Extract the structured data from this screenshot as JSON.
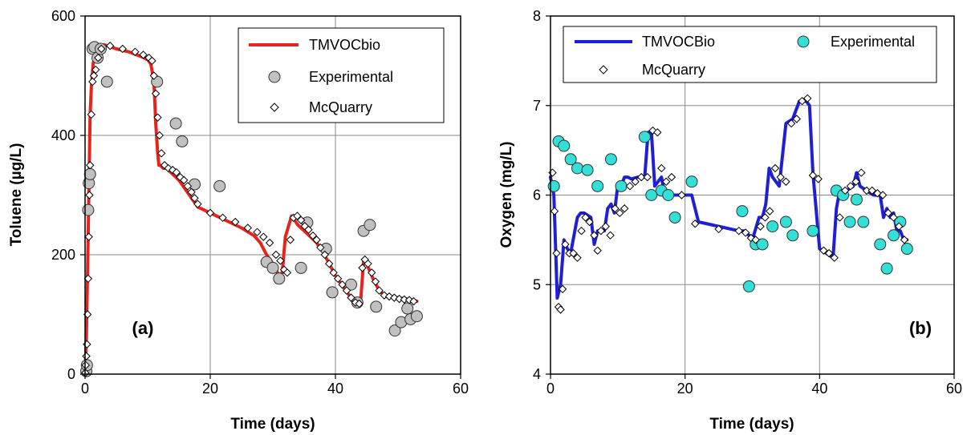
{
  "chart_data": [
    {
      "type": "line",
      "panel_label": "(a)",
      "xlabel": "Time (days)",
      "ylabel": "Toluene (µg/L)",
      "xlim": [
        0,
        60
      ],
      "ylim": [
        0,
        600
      ],
      "xticks": [
        0,
        20,
        40,
        60
      ],
      "yticks": [
        0,
        200,
        400,
        600
      ],
      "grid": true,
      "legend_position": "top-right",
      "series": [
        {
          "name": "TMVOCbio",
          "kind": "line",
          "color": "#e8231c",
          "x": [
            0,
            0.2,
            0.4,
            0.6,
            0.8,
            1.0,
            1.3,
            1.7,
            2.2,
            3,
            5,
            7,
            9,
            10,
            10.5,
            11,
            11.3,
            11.6,
            11.8,
            12,
            12.5,
            13,
            14,
            15,
            16,
            17,
            18,
            19,
            21,
            23,
            25,
            27,
            28,
            29,
            30,
            30.5,
            31,
            31.5,
            32,
            33,
            34,
            35,
            36,
            37,
            38,
            39,
            40,
            41,
            42,
            43,
            44,
            44.5,
            45,
            46,
            47,
            48,
            50,
            52,
            53
          ],
          "y": [
            0,
            60,
            170,
            300,
            430,
            480,
            520,
            540,
            548,
            552,
            545,
            540,
            532,
            527,
            520,
            490,
            420,
            370,
            350,
            350,
            345,
            345,
            335,
            325,
            310,
            295,
            280,
            275,
            265,
            255,
            245,
            232,
            220,
            200,
            185,
            175,
            165,
            170,
            230,
            265,
            250,
            240,
            230,
            220,
            205,
            185,
            165,
            150,
            135,
            120,
            118,
            190,
            185,
            160,
            140,
            130,
            128,
            125,
            122
          ]
        },
        {
          "name": "Experimental",
          "kind": "circle",
          "color": "#c0c0c0",
          "x": [
            0.2,
            0.3,
            0.5,
            0.6,
            0.8,
            1.2,
            1.5,
            2.0,
            2.5,
            3.5,
            11.5,
            14.5,
            15.5,
            17.5,
            21.5,
            29.0,
            30.0,
            31.0,
            34.5,
            35.5,
            38.5,
            39.5,
            42.5,
            43.5,
            44.5,
            45.5,
            46.5,
            49.5,
            50.5,
            51.5,
            52.0,
            53.0
          ],
          "y": [
            5,
            15,
            275,
            320,
            335,
            545,
            548,
            530,
            545,
            490,
            490,
            420,
            390,
            318,
            315,
            188,
            178,
            160,
            178,
            254,
            210,
            137,
            150,
            120,
            240,
            250,
            113,
            73,
            87,
            110,
            92,
            97
          ]
        },
        {
          "name": "McQuarry",
          "kind": "diamond",
          "color": "#ffffff",
          "x": [
            0.05,
            0.1,
            0.2,
            0.3,
            0.4,
            0.5,
            0.6,
            0.7,
            0.8,
            1.0,
            1.2,
            1.4,
            1.7,
            2.1,
            2.6,
            4.0,
            6.0,
            8.0,
            9.3,
            10.2,
            10.7,
            11.0,
            11.3,
            11.6,
            11.9,
            12.2,
            12.7,
            13.3,
            14.0,
            14.6,
            15.2,
            15.8,
            16.4,
            17.0,
            17.5,
            18.0,
            20.0,
            22.0,
            24.0,
            26.0,
            27.5,
            28.5,
            29.5,
            30.5,
            31.2,
            31.8,
            32.3,
            32.8,
            33.3,
            33.9,
            34.5,
            35.1,
            35.7,
            36.4,
            37.0,
            37.6,
            38.3,
            39.0,
            39.7,
            40.4,
            41.1,
            41.8,
            42.5,
            43.2,
            43.8,
            44.3,
            44.7,
            45.2,
            45.8,
            46.4,
            47.0,
            47.8,
            48.6,
            49.4,
            50.2,
            51.0,
            51.8,
            52.5
          ],
          "y": [
            2,
            15,
            30,
            50,
            100,
            160,
            230,
            300,
            350,
            435,
            490,
            500,
            510,
            530,
            545,
            550,
            545,
            540,
            535,
            530,
            525,
            500,
            470,
            430,
            400,
            370,
            350,
            345,
            342,
            338,
            330,
            325,
            315,
            305,
            295,
            285,
            270,
            262,
            255,
            245,
            238,
            230,
            220,
            200,
            190,
            175,
            170,
            225,
            262,
            265,
            258,
            248,
            242,
            232,
            225,
            212,
            200,
            185,
            170,
            160,
            150,
            140,
            128,
            120,
            118,
            178,
            192,
            185,
            170,
            155,
            140,
            132,
            130,
            128,
            126,
            125,
            124,
            122
          ]
        }
      ]
    },
    {
      "type": "line",
      "panel_label": "(b)",
      "xlabel": "Time (days)",
      "ylabel": "Oxygen (mg/L)",
      "xlim": [
        0,
        60
      ],
      "ylim": [
        4,
        8
      ],
      "xticks": [
        0,
        20,
        40,
        60
      ],
      "yticks": [
        4,
        5,
        6,
        7,
        8
      ],
      "grid": true,
      "legend_position": "top",
      "series": [
        {
          "name": "TMVOCBio",
          "kind": "line",
          "color": "#1f1fd6",
          "x": [
            0,
            0.5,
            1.0,
            1.5,
            2.0,
            2.5,
            3.0,
            4.0,
            4.5,
            5.0,
            6.0,
            6.5,
            7.0,
            7.5,
            8.0,
            8.5,
            9.0,
            9.5,
            10.0,
            10.5,
            11.0,
            11.5,
            12.0,
            13.0,
            14.0,
            14.5,
            15.0,
            15.5,
            16.0,
            16.5,
            17.0,
            18.0,
            19.0,
            20.0,
            21.0,
            22.0,
            25.0,
            28.0,
            29.0,
            30.0,
            31.0,
            31.5,
            32.0,
            32.5,
            33.0,
            34.0,
            35.0,
            36.0,
            37.0,
            38.0,
            38.5,
            39.0,
            40.0,
            41.0,
            42.0,
            42.5,
            43.0,
            44.0,
            45.0,
            45.5,
            46.0,
            47.0,
            48.0,
            49.0,
            49.5,
            50.0,
            50.5,
            51.0,
            51.5,
            52.0,
            52.5,
            53.0
          ],
          "y": [
            6.2,
            6.0,
            4.85,
            5.0,
            5.5,
            5.4,
            5.35,
            5.75,
            5.8,
            5.8,
            5.75,
            5.45,
            5.6,
            5.6,
            5.6,
            5.85,
            5.9,
            5.8,
            6.1,
            6.1,
            6.2,
            6.2,
            6.18,
            6.2,
            6.2,
            6.7,
            6.7,
            6.1,
            6.15,
            6.2,
            6.0,
            6.0,
            6.0,
            6.0,
            6.0,
            5.7,
            5.65,
            5.6,
            5.6,
            5.5,
            5.75,
            5.75,
            5.9,
            6.3,
            6.2,
            6.1,
            6.8,
            6.85,
            7.05,
            7.05,
            7.0,
            6.25,
            5.4,
            5.35,
            5.3,
            5.85,
            6.05,
            6.05,
            6.1,
            6.25,
            6.1,
            6.05,
            6.0,
            6.0,
            5.75,
            5.85,
            5.75,
            5.8,
            5.6,
            5.6,
            5.5,
            5.5
          ]
        },
        {
          "name": "Experimental",
          "kind": "circle",
          "color": "#33e0d8",
          "x": [
            0.5,
            1.2,
            2.0,
            3.0,
            4.0,
            5.5,
            7.0,
            9.0,
            10.5,
            14.0,
            15.0,
            16.5,
            17.5,
            18.5,
            21.0,
            28.5,
            29.5,
            30.5,
            31.5,
            33.0,
            35.0,
            36.0,
            39.0,
            42.5,
            43.5,
            44.5,
            45.5,
            46.5,
            49.0,
            50.0,
            51.0,
            52.0,
            53.0
          ],
          "y": [
            6.1,
            6.6,
            6.55,
            6.4,
            6.3,
            6.28,
            6.1,
            6.4,
            6.1,
            6.65,
            6.0,
            6.05,
            6.0,
            5.75,
            6.15,
            5.82,
            4.98,
            5.45,
            5.45,
            5.65,
            5.7,
            5.55,
            5.6,
            6.05,
            6.0,
            5.7,
            5.95,
            5.7,
            5.45,
            5.18,
            5.55,
            5.7,
            5.4
          ]
        },
        {
          "name": "McQuarry",
          "kind": "diamond",
          "color": "#ffffff",
          "x": [
            0.3,
            0.6,
            0.9,
            1.2,
            1.5,
            1.8,
            2.2,
            2.8,
            3.4,
            4.0,
            4.6,
            5.2,
            5.8,
            6.5,
            7.0,
            7.5,
            8.2,
            8.9,
            9.6,
            10.3,
            11.0,
            11.8,
            12.6,
            13.5,
            14.4,
            15.2,
            15.9,
            16.5,
            17.2,
            18.0,
            19.5,
            21.5,
            25.0,
            28.0,
            29.0,
            29.8,
            30.5,
            31.2,
            31.9,
            32.6,
            33.4,
            34.2,
            35.0,
            35.8,
            36.6,
            37.4,
            38.2,
            39.0,
            39.8,
            40.6,
            41.4,
            42.2,
            43.0,
            43.8,
            44.6,
            45.4,
            46.2,
            47.0,
            47.8,
            48.6,
            49.4,
            50.2,
            51.0,
            51.8,
            52.6
          ],
          "y": [
            6.25,
            5.82,
            5.35,
            4.75,
            4.72,
            4.95,
            5.45,
            5.35,
            5.35,
            5.3,
            5.6,
            5.75,
            5.7,
            5.55,
            5.38,
            5.6,
            5.65,
            5.55,
            5.85,
            5.8,
            5.85,
            6.1,
            6.15,
            6.2,
            6.2,
            6.72,
            6.7,
            6.3,
            6.15,
            6.2,
            6.0,
            5.68,
            5.62,
            5.6,
            5.58,
            5.52,
            5.5,
            5.65,
            5.75,
            5.82,
            6.3,
            6.2,
            6.15,
            6.8,
            6.85,
            7.05,
            7.08,
            6.22,
            6.18,
            5.38,
            5.35,
            5.3,
            5.75,
            6.05,
            6.1,
            6.15,
            6.25,
            6.05,
            6.05,
            6.02,
            6.0,
            5.8,
            5.75,
            5.65,
            5.5
          ]
        }
      ]
    }
  ]
}
